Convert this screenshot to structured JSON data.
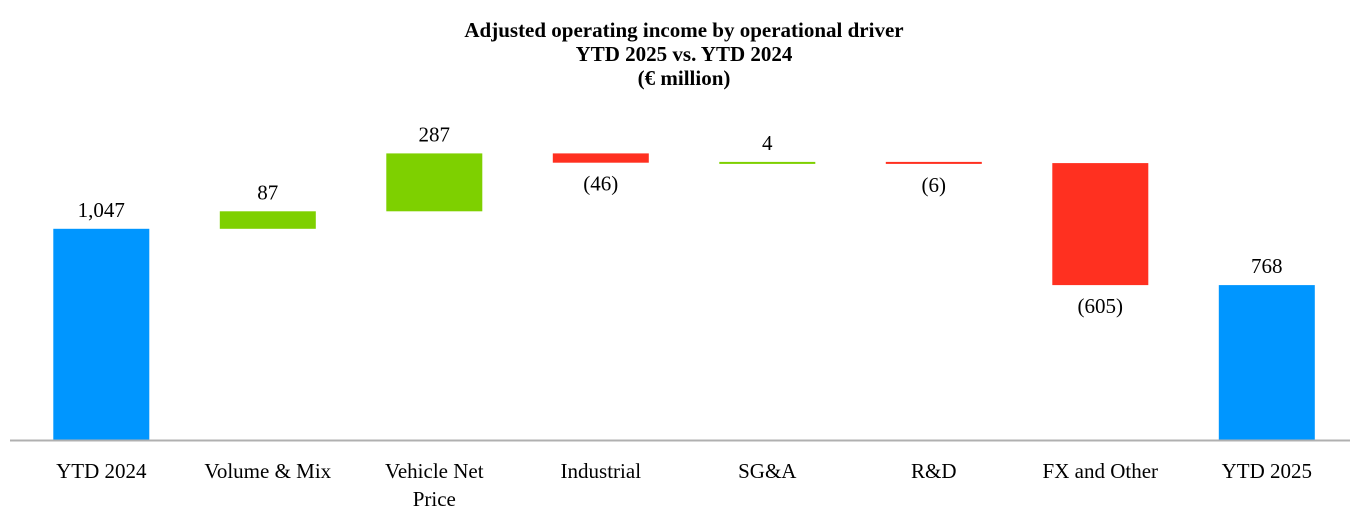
{
  "chart_data": {
    "type": "bar",
    "subtype": "waterfall",
    "title": "Adjusted operating income by operational driver",
    "subtitle": "YTD 2025 vs. YTD 2024",
    "units": "(€ million)",
    "categories": [
      [
        "YTD 2024"
      ],
      [
        "Volume & Mix"
      ],
      [
        "Vehicle Net",
        "Price"
      ],
      [
        "Industrial"
      ],
      [
        "SG&A"
      ],
      [
        "R&D"
      ],
      [
        "FX and Other"
      ],
      [
        "YTD 2025"
      ]
    ],
    "steps": [
      {
        "kind": "total",
        "value": 1047,
        "label": "1,047"
      },
      {
        "kind": "delta",
        "value": 87,
        "label": "87"
      },
      {
        "kind": "delta",
        "value": 287,
        "label": "287"
      },
      {
        "kind": "delta",
        "value": -46,
        "label": "(46)"
      },
      {
        "kind": "delta",
        "value": 4,
        "label": "4"
      },
      {
        "kind": "delta",
        "value": -6,
        "label": "(6)"
      },
      {
        "kind": "delta",
        "value": -605,
        "label": "(605)"
      },
      {
        "kind": "total",
        "value": 768,
        "label": "768"
      }
    ],
    "colors": {
      "total": "#0096FF",
      "increase": "#7ED000",
      "decrease": "#FF3020",
      "axis": "#B0B0B0"
    },
    "ylim": [
      0,
      1450
    ],
    "grid": false,
    "legend": "none"
  }
}
